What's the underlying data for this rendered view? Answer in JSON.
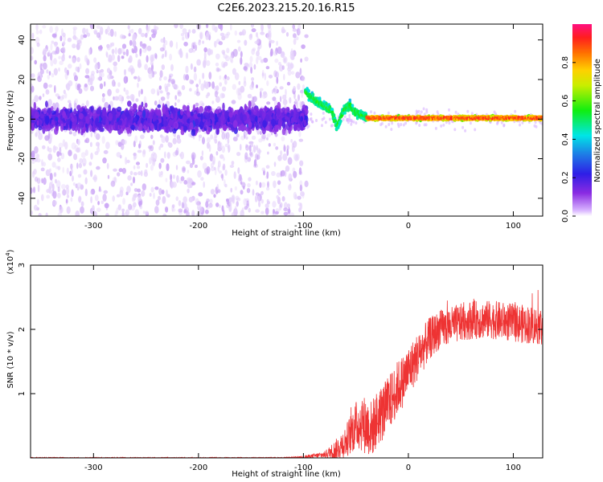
{
  "title": "C2E6.2023.215.20.16.R15",
  "chart_data": [
    {
      "type": "heatmap",
      "name": "spectrogram",
      "xlabel": "Height of straight line (km)",
      "ylabel": "Frequency (Hz)",
      "xlim": [
        -360,
        128
      ],
      "ylim": [
        -49,
        48
      ],
      "xticks": [
        -300,
        -200,
        -100,
        0,
        100
      ],
      "yticks": [
        -40,
        -20,
        0,
        20,
        40
      ],
      "ridge": [
        [
          -360,
          0
        ],
        [
          -100,
          0
        ],
        [
          -98,
          14
        ],
        [
          -90,
          10
        ],
        [
          -84,
          8
        ],
        [
          -78,
          6
        ],
        [
          -73,
          4
        ],
        [
          -68,
          -4
        ],
        [
          -62,
          4
        ],
        [
          -56,
          7
        ],
        [
          -50,
          3
        ],
        [
          -44,
          2
        ],
        [
          -38,
          0.5
        ],
        [
          -20,
          0.5
        ],
        [
          0,
          0.5
        ],
        [
          40,
          0.5
        ],
        [
          80,
          0.5
        ],
        [
          128,
          0.5
        ]
      ],
      "colorbar": {
        "label": "Normalized spectral amplitude",
        "range": [
          0.0,
          1.0
        ],
        "ticks": [
          0.0,
          0.2,
          0.4,
          0.6,
          0.8
        ]
      }
    },
    {
      "type": "line",
      "name": "snr",
      "xlabel": "Height of straight line (km)",
      "ylabel": "SNR (10 * v/v)",
      "ylabel_multiplier": "(x10",
      "ylabel_multiplier_exp": "4",
      "ylabel_multiplier_close": ")",
      "xlim": [
        -360,
        128
      ],
      "ylim": [
        0,
        3
      ],
      "xticks": [
        -300,
        -200,
        -100,
        0,
        100
      ],
      "yticks": [
        1,
        2,
        3
      ],
      "color": "#ee3333",
      "envelope": [
        [
          -360,
          0.0
        ],
        [
          -120,
          0.0
        ],
        [
          -100,
          0.01
        ],
        [
          -80,
          0.05
        ],
        [
          -70,
          0.12
        ],
        [
          -60,
          0.25
        ],
        [
          -50,
          0.5
        ],
        [
          -45,
          0.55
        ],
        [
          -40,
          0.5
        ],
        [
          -35,
          0.45
        ],
        [
          -30,
          0.6
        ],
        [
          -25,
          0.7
        ],
        [
          -20,
          0.8
        ],
        [
          -15,
          0.95
        ],
        [
          -10,
          1.1
        ],
        [
          -5,
          1.2
        ],
        [
          0,
          1.35
        ],
        [
          10,
          1.6
        ],
        [
          20,
          1.85
        ],
        [
          30,
          2.0
        ],
        [
          40,
          2.05
        ],
        [
          60,
          2.15
        ],
        [
          80,
          2.15
        ],
        [
          100,
          2.1
        ],
        [
          128,
          2.05
        ]
      ],
      "noise_amplitude": [
        [
          -360,
          0.01
        ],
        [
          -110,
          0.01
        ],
        [
          -80,
          0.05
        ],
        [
          -60,
          0.25
        ],
        [
          -45,
          0.45
        ],
        [
          -20,
          0.45
        ],
        [
          0,
          0.4
        ],
        [
          30,
          0.3
        ],
        [
          128,
          0.3
        ]
      ]
    }
  ]
}
